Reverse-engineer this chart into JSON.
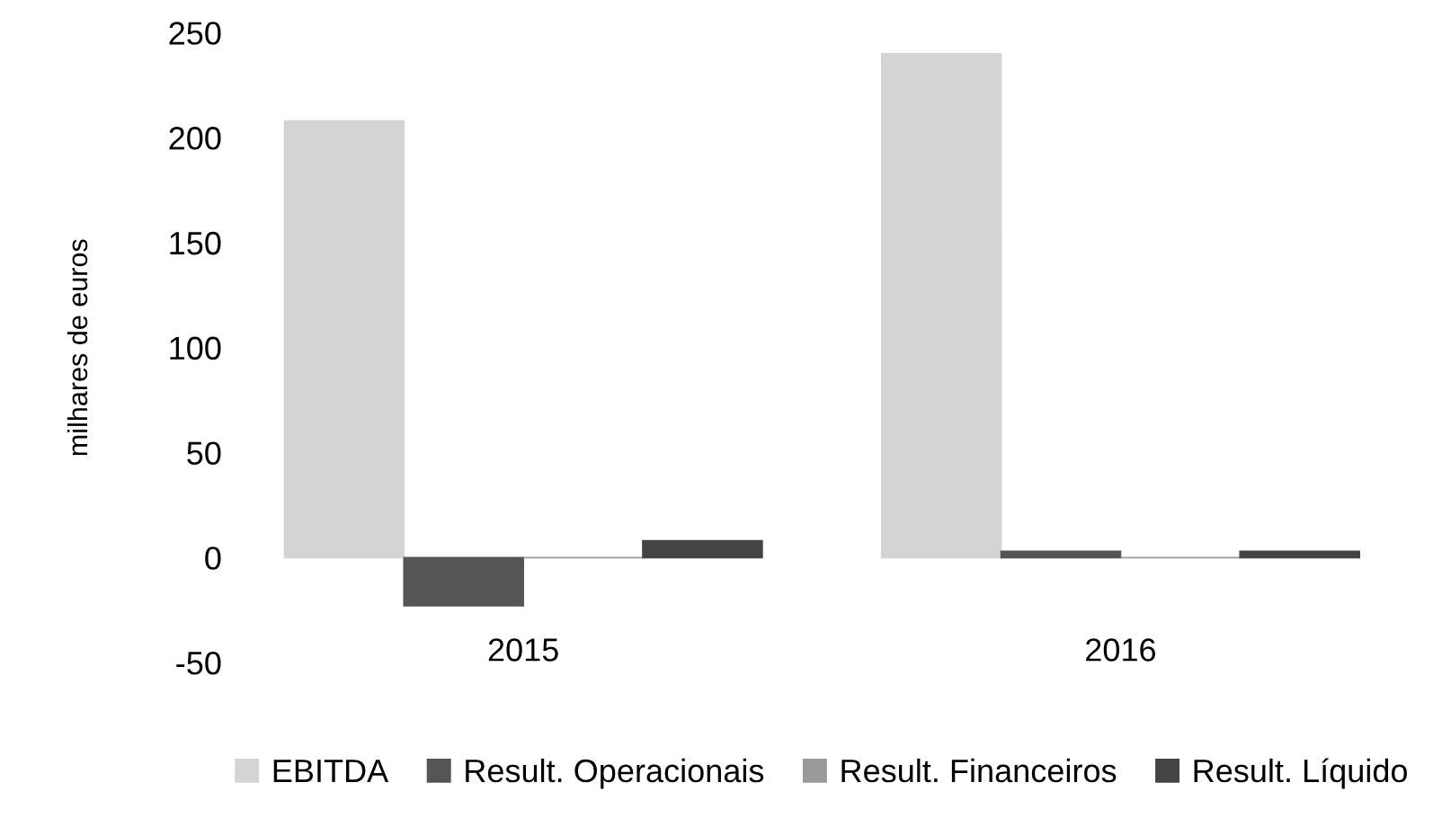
{
  "chart_data": {
    "type": "bar",
    "ylabel": "milhares de euros",
    "categories": [
      "2015",
      "2016"
    ],
    "series": [
      {
        "name": "EBITDA",
        "color": "#d4d4d4",
        "values": [
          208,
          240
        ]
      },
      {
        "name": "Result. Operacionais",
        "color": "#555555",
        "values": [
          -23,
          3
        ]
      },
      {
        "name": "Result. Financeiros",
        "color": "#9a9a9a",
        "values": [
          0,
          0
        ]
      },
      {
        "name": "Result. Líquido",
        "color": "#444444",
        "values": [
          8,
          3
        ]
      }
    ],
    "ylim": [
      -50,
      250
    ],
    "yticks": [
      -50,
      0,
      50,
      100,
      150,
      200,
      250
    ],
    "grid": false,
    "legend": "bottom"
  }
}
